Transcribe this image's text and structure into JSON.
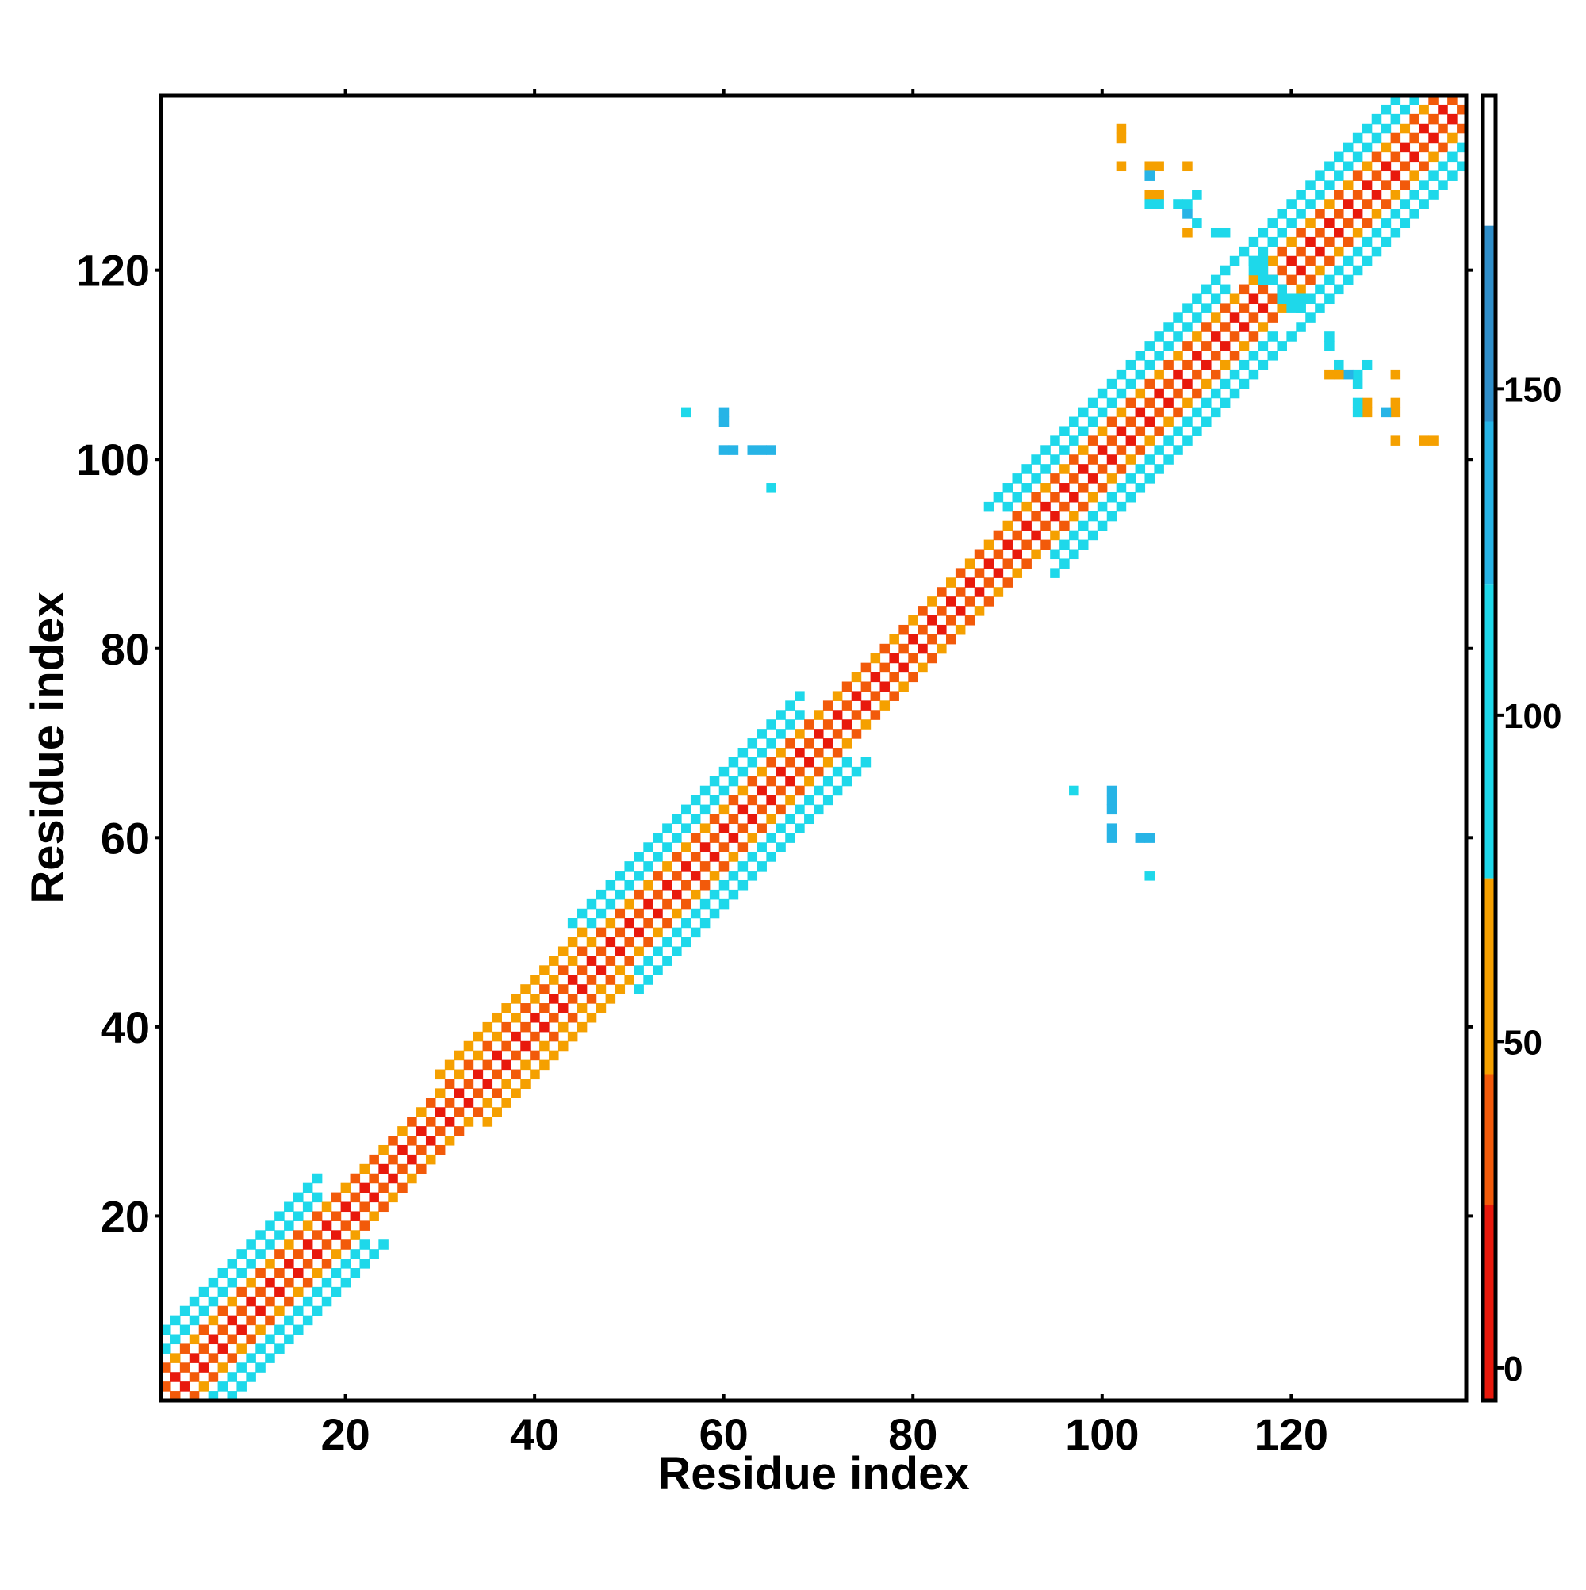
{
  "chart_data": {
    "type": "heatmap",
    "title": "",
    "xlabel": "Residue index",
    "ylabel": "Residue index",
    "xlim": [
      0.5,
      138.5
    ],
    "ylim": [
      0.5,
      138.5
    ],
    "x_ticks": [
      20,
      40,
      60,
      80,
      100,
      120
    ],
    "y_ticks": [
      20,
      40,
      60,
      80,
      100,
      120
    ],
    "colorbar": {
      "range": [
        -5,
        195
      ],
      "ticks": [
        0,
        50,
        100,
        150
      ],
      "bins": [
        {
          "from": -5,
          "to": 25,
          "color": "#e8190c"
        },
        {
          "from": 25,
          "to": 45,
          "color": "#f25a0a"
        },
        {
          "from": 45,
          "to": 75,
          "color": "#f5a000"
        },
        {
          "from": 75,
          "to": 120,
          "color": "#1ed8ea"
        },
        {
          "from": 120,
          "to": 145,
          "color": "#27b4e6"
        },
        {
          "from": 145,
          "to": 175,
          "color": "#2f8ec9"
        },
        {
          "from": 175,
          "to": 195,
          "color": "#ffffff"
        }
      ]
    },
    "color_scale": {
      "positive": "#e8190c",
      "antiparallel_band": "#f25a0a",
      "intermediate": "#f5a000",
      "far": "#1ed8ea",
      "far_alt": "#2f8ec9"
    },
    "diagonal": {
      "residue_count": 138,
      "grid": "off",
      "segments": [
        {
          "from": 1,
          "to": 17,
          "half_width": 7
        },
        {
          "from": 18,
          "to": 34,
          "half_width": 3
        },
        {
          "from": 35,
          "to": 46,
          "half_width": 5
        },
        {
          "from": 47,
          "to": 50,
          "half_width": 3
        },
        {
          "from": 51,
          "to": 68,
          "half_width": 7
        },
        {
          "from": 69,
          "to": 94,
          "half_width": 3
        },
        {
          "from": 95,
          "to": 113,
          "half_width": 7
        },
        {
          "from": 114,
          "to": 120,
          "half_width": 3
        },
        {
          "from": 121,
          "to": 138,
          "half_width": 7
        }
      ]
    },
    "off_diagonal_cells": [
      {
        "x": 56,
        "y": 105,
        "value": 110
      },
      {
        "x": 60,
        "y": 105,
        "value": 125
      },
      {
        "x": 60,
        "y": 104,
        "value": 125
      },
      {
        "x": 60,
        "y": 101,
        "value": 125
      },
      {
        "x": 61,
        "y": 101,
        "value": 125
      },
      {
        "x": 63,
        "y": 101,
        "value": 125
      },
      {
        "x": 64,
        "y": 101,
        "value": 125
      },
      {
        "x": 65,
        "y": 101,
        "value": 125
      },
      {
        "x": 65,
        "y": 97,
        "value": 110
      },
      {
        "x": 97,
        "y": 65,
        "value": 110
      },
      {
        "x": 101,
        "y": 65,
        "value": 125
      },
      {
        "x": 101,
        "y": 64,
        "value": 125
      },
      {
        "x": 101,
        "y": 63,
        "value": 125
      },
      {
        "x": 101,
        "y": 61,
        "value": 125
      },
      {
        "x": 101,
        "y": 60,
        "value": 125
      },
      {
        "x": 104,
        "y": 60,
        "value": 125
      },
      {
        "x": 105,
        "y": 60,
        "value": 125
      },
      {
        "x": 105,
        "y": 56,
        "value": 110
      },
      {
        "x": 102,
        "y": 135,
        "value": 60
      },
      {
        "x": 102,
        "y": 134,
        "value": 60
      },
      {
        "x": 102,
        "y": 131,
        "value": 60
      },
      {
        "x": 105,
        "y": 131,
        "value": 60
      },
      {
        "x": 106,
        "y": 131,
        "value": 60
      },
      {
        "x": 109,
        "y": 131,
        "value": 60
      },
      {
        "x": 105,
        "y": 130,
        "value": 130
      },
      {
        "x": 105,
        "y": 128,
        "value": 60
      },
      {
        "x": 106,
        "y": 128,
        "value": 60
      },
      {
        "x": 105,
        "y": 127,
        "value": 110
      },
      {
        "x": 106,
        "y": 127,
        "value": 110
      },
      {
        "x": 108,
        "y": 127,
        "value": 110
      },
      {
        "x": 109,
        "y": 127,
        "value": 110
      },
      {
        "x": 110,
        "y": 128,
        "value": 110
      },
      {
        "x": 109,
        "y": 126,
        "value": 130
      },
      {
        "x": 109,
        "y": 124,
        "value": 60
      },
      {
        "x": 112,
        "y": 124,
        "value": 110
      },
      {
        "x": 113,
        "y": 124,
        "value": 110
      },
      {
        "x": 135,
        "y": 102,
        "value": 60
      },
      {
        "x": 134,
        "y": 102,
        "value": 60
      },
      {
        "x": 131,
        "y": 102,
        "value": 60
      },
      {
        "x": 131,
        "y": 105,
        "value": 60
      },
      {
        "x": 131,
        "y": 106,
        "value": 60
      },
      {
        "x": 131,
        "y": 109,
        "value": 60
      },
      {
        "x": 130,
        "y": 105,
        "value": 130
      },
      {
        "x": 128,
        "y": 105,
        "value": 60
      },
      {
        "x": 128,
        "y": 106,
        "value": 60
      },
      {
        "x": 127,
        "y": 105,
        "value": 110
      },
      {
        "x": 127,
        "y": 106,
        "value": 110
      },
      {
        "x": 127,
        "y": 108,
        "value": 110
      },
      {
        "x": 127,
        "y": 109,
        "value": 110
      },
      {
        "x": 128,
        "y": 110,
        "value": 110
      },
      {
        "x": 126,
        "y": 109,
        "value": 130
      },
      {
        "x": 124,
        "y": 109,
        "value": 60
      },
      {
        "x": 124,
        "y": 112,
        "value": 110
      },
      {
        "x": 124,
        "y": 113,
        "value": 110
      },
      {
        "x": 125,
        "y": 110,
        "value": 110
      },
      {
        "x": 125,
        "y": 109,
        "value": 60
      },
      {
        "x": 110,
        "y": 125,
        "value": 110
      },
      {
        "x": 116,
        "y": 121,
        "value": 110
      },
      {
        "x": 117,
        "y": 121,
        "value": 110
      },
      {
        "x": 116,
        "y": 120,
        "value": 110
      },
      {
        "x": 117,
        "y": 120,
        "value": 110
      },
      {
        "x": 118,
        "y": 119,
        "value": 110
      },
      {
        "x": 120,
        "y": 117,
        "value": 110
      },
      {
        "x": 121,
        "y": 116,
        "value": 110
      },
      {
        "x": 121,
        "y": 117,
        "value": 110
      },
      {
        "x": 120,
        "y": 116,
        "value": 110
      },
      {
        "x": 119,
        "y": 118,
        "value": 110
      },
      {
        "x": 117,
        "y": 119,
        "value": 110
      },
      {
        "x": 119,
        "y": 117,
        "value": 110
      }
    ]
  }
}
